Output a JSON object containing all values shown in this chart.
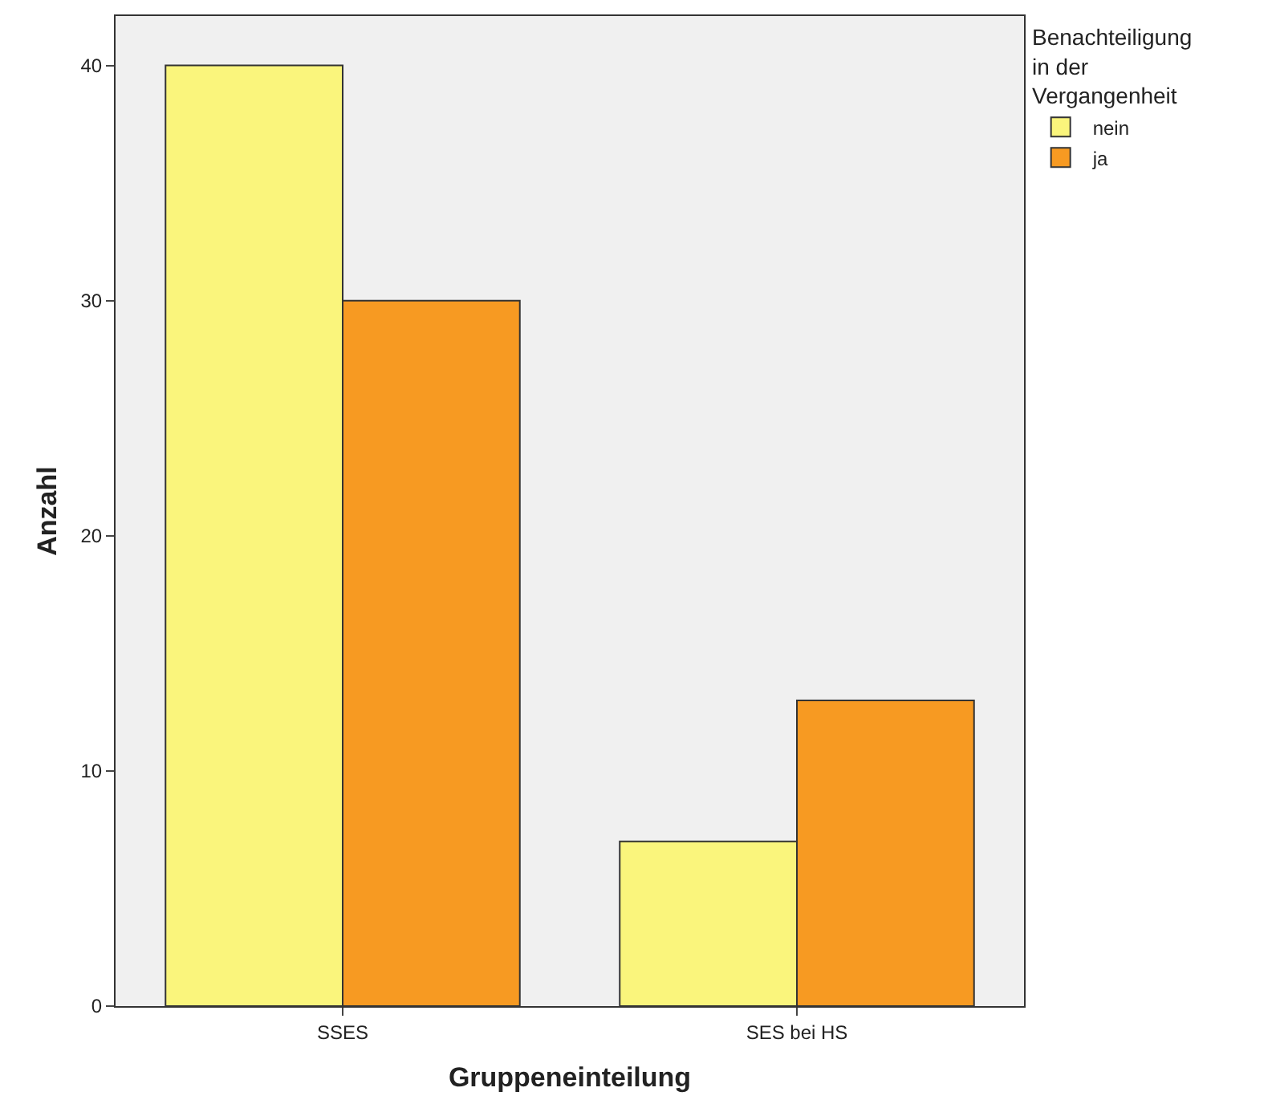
{
  "chart_data": {
    "type": "bar",
    "xlabel": "Gruppeneinteilung",
    "ylabel": "Anzahl",
    "legend_title": "Benachteiligung in der Vergangenheit",
    "categories": [
      "SSES",
      "SES bei HS"
    ],
    "series": [
      {
        "name": "nein",
        "color": "#faf57c",
        "values": [
          40,
          7
        ]
      },
      {
        "name": "ja",
        "color": "#f79a22",
        "values": [
          30,
          13
        ]
      }
    ],
    "ylim": [
      0,
      42.1
    ],
    "yticks": [
      0,
      10,
      20,
      30,
      40
    ],
    "grid": false,
    "legend": "top right"
  }
}
